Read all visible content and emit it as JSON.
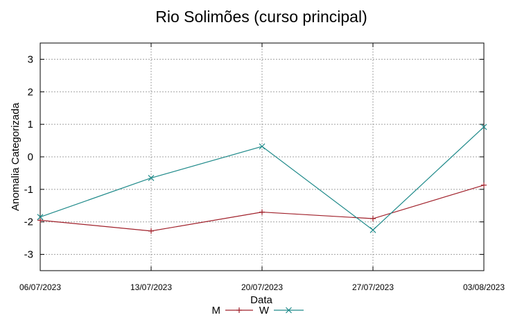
{
  "chart_data": {
    "type": "line",
    "title": "Rio Solimões (curso principal)",
    "xlabel": "Data",
    "ylabel": "Anomalia Categorizada",
    "x": [
      "06/07/2023",
      "13/07/2023",
      "20/07/2023",
      "27/07/2023",
      "03/08/2023"
    ],
    "ylim": [
      -3.5,
      3.5
    ],
    "yticks": [
      -3,
      -2,
      -1,
      0,
      1,
      2,
      3
    ],
    "grid": true,
    "legend_position": "bottom-center",
    "series": [
      {
        "name": "M",
        "values": [
          -1.95,
          -2.28,
          -1.7,
          -1.9,
          -0.87
        ],
        "color": "#a0202a",
        "marker": "plus"
      },
      {
        "name": "W",
        "values": [
          -1.85,
          -0.65,
          0.32,
          -2.25,
          0.92
        ],
        "color": "#1f8a8a",
        "marker": "cross"
      }
    ]
  }
}
